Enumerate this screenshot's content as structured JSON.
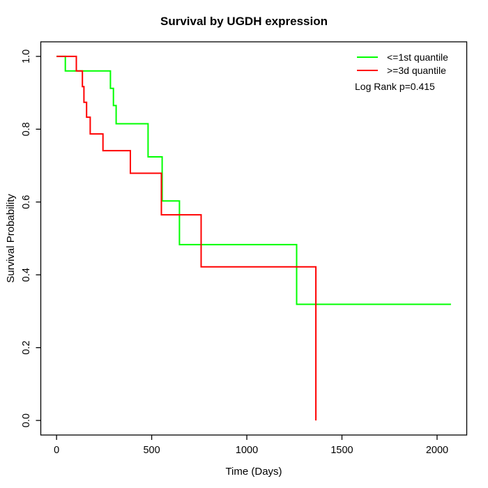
{
  "title": "Survival by UGDH expression",
  "axes": {
    "x": {
      "label": "Time (Days)",
      "tick_labels": [
        "0",
        "500",
        "1000",
        "1500",
        "2000"
      ]
    },
    "y": {
      "label": "Survival Probability",
      "tick_labels": [
        "0.0",
        "0.2",
        "0.4",
        "0.6",
        "0.8",
        "1.0"
      ]
    }
  },
  "legend": {
    "items": [
      {
        "label": "<=1st quantile",
        "color": "#00ff00"
      },
      {
        "label": ">=3d quantile",
        "color": "#ff0000"
      }
    ],
    "note": "Log Rank p=0.415"
  },
  "chart_data": {
    "type": "line",
    "subtype": "kaplan-meier-step-curves",
    "title": "Survival by UGDH expression",
    "xlabel": "Time (Days)",
    "ylabel": "Survival Probability",
    "xlim": [
      0,
      2073
    ],
    "ylim": [
      0,
      1
    ],
    "x_ticks": [
      0,
      500,
      1000,
      1500,
      2000
    ],
    "y_ticks": [
      0.0,
      0.2,
      0.4,
      0.6,
      0.8,
      1.0
    ],
    "grid": false,
    "legend_position": "top-right",
    "annotation": "Log Rank p=0.415",
    "series": [
      {
        "name": "<=1st quantile",
        "color": "#00ff00",
        "points": [
          [
            0,
            1.0
          ],
          [
            46,
            1.0
          ],
          [
            46,
            0.96
          ],
          [
            283,
            0.96
          ],
          [
            283,
            0.912
          ],
          [
            299,
            0.912
          ],
          [
            299,
            0.865
          ],
          [
            313,
            0.865
          ],
          [
            313,
            0.815
          ],
          [
            481,
            0.815
          ],
          [
            481,
            0.724
          ],
          [
            555,
            0.724
          ],
          [
            555,
            0.603
          ],
          [
            646,
            0.603
          ],
          [
            646,
            0.483
          ],
          [
            1262,
            0.483
          ],
          [
            1262,
            0.319
          ],
          [
            2073,
            0.319
          ]
        ]
      },
      {
        "name": ">=3d quantile",
        "color": "#ff0000",
        "points": [
          [
            0,
            1.0
          ],
          [
            104,
            1.0
          ],
          [
            104,
            0.96
          ],
          [
            136,
            0.96
          ],
          [
            136,
            0.917
          ],
          [
            144,
            0.917
          ],
          [
            144,
            0.874
          ],
          [
            158,
            0.874
          ],
          [
            158,
            0.833
          ],
          [
            177,
            0.833
          ],
          [
            177,
            0.787
          ],
          [
            244,
            0.787
          ],
          [
            244,
            0.741
          ],
          [
            388,
            0.741
          ],
          [
            388,
            0.679
          ],
          [
            551,
            0.679
          ],
          [
            551,
            0.565
          ],
          [
            760,
            0.565
          ],
          [
            760,
            0.422
          ],
          [
            1363,
            0.422
          ],
          [
            1363,
            0.0
          ]
        ]
      }
    ]
  }
}
